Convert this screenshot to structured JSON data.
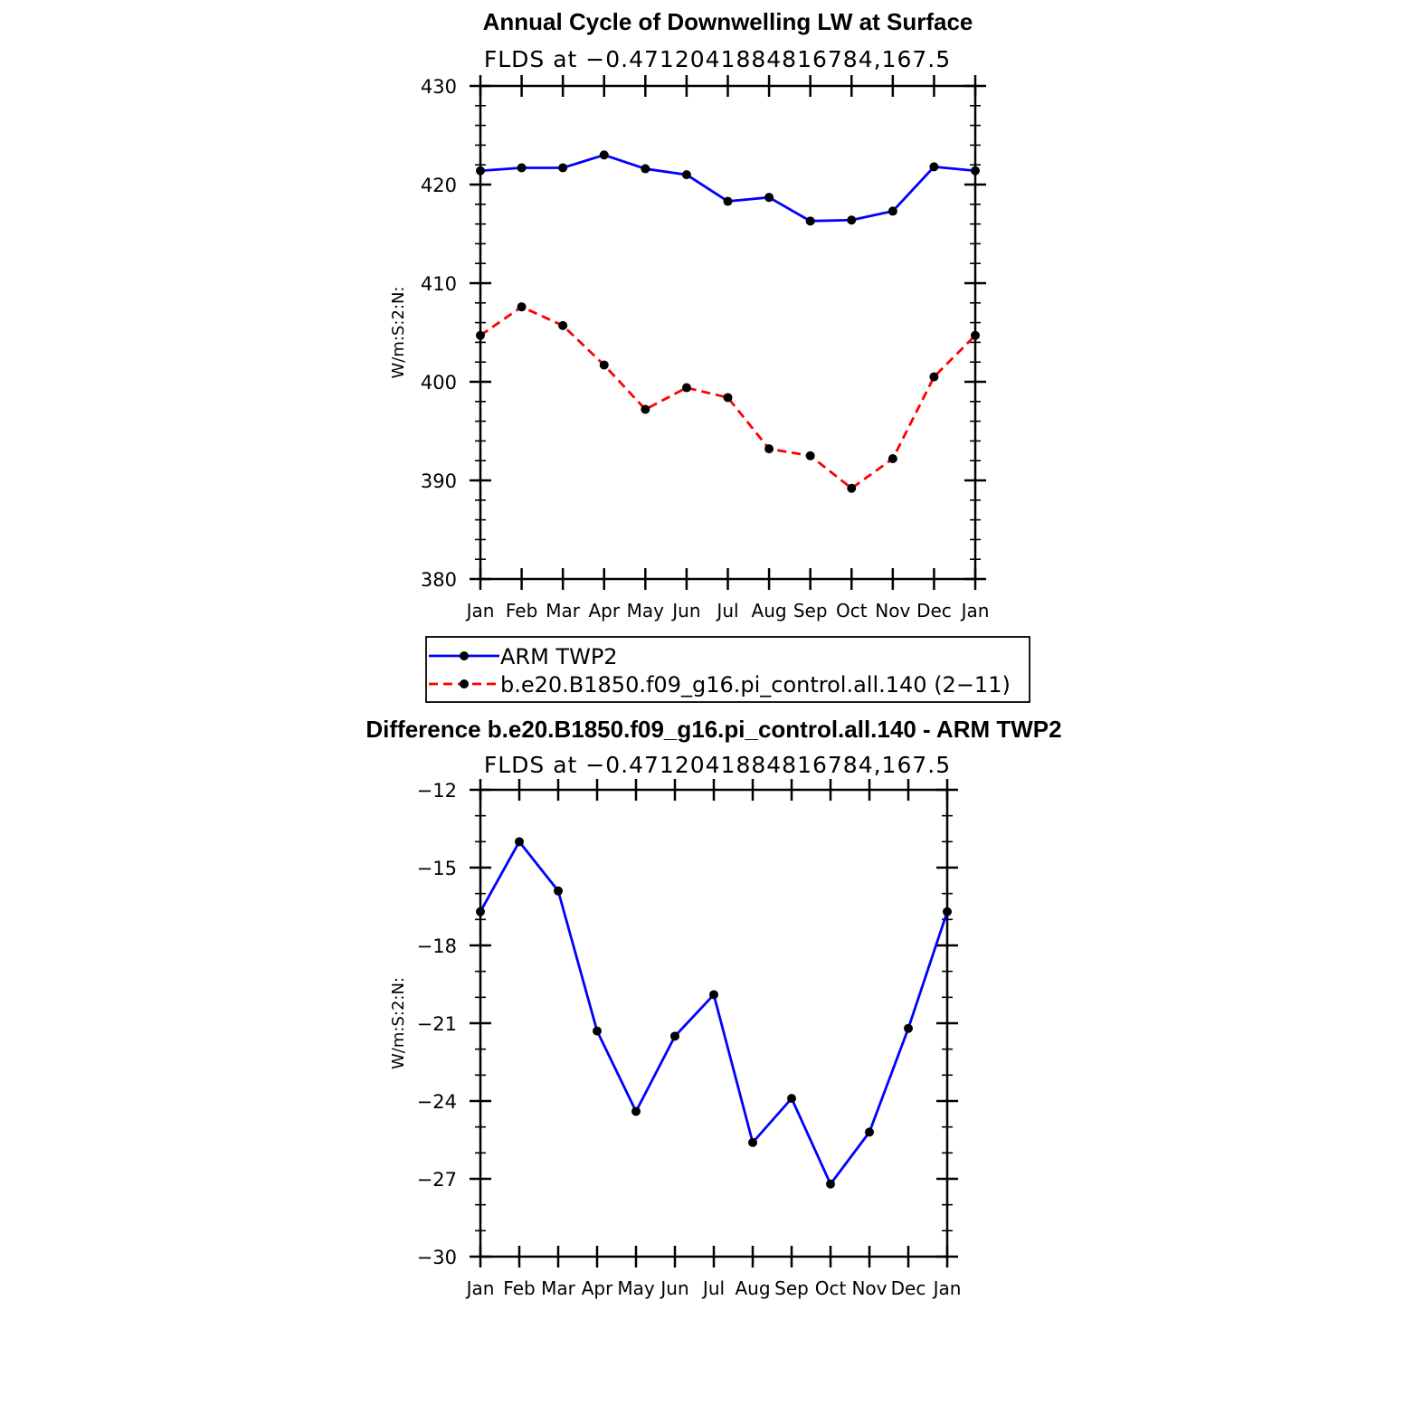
{
  "chart_data": [
    {
      "type": "line",
      "title": "Annual Cycle of Downwelling LW at Surface",
      "subtitle": "FLDS at −0.4712041884816784,167.5",
      "ylabel": "W/m:S:2:N:",
      "xlabel": "",
      "categories": [
        "Jan",
        "Feb",
        "Mar",
        "Apr",
        "May",
        "Jun",
        "Jul",
        "Aug",
        "Sep",
        "Oct",
        "Nov",
        "Dec",
        "Jan"
      ],
      "ylim": [
        380,
        430
      ],
      "yticks": [
        380,
        390,
        400,
        410,
        420,
        430
      ],
      "ytick_labels": [
        "380",
        "390",
        "400",
        "410",
        "420",
        "430"
      ],
      "series": [
        {
          "name": "ARM TWP2",
          "color": "#0000ff",
          "dash": "solid",
          "values": [
            421.4,
            421.7,
            421.7,
            423.0,
            421.6,
            421.0,
            418.3,
            418.7,
            416.3,
            416.4,
            417.3,
            421.8,
            421.4
          ]
        },
        {
          "name": "b.e20.B1850.f09_g16.pi_control.all.140 (2−11)",
          "color": "#ff0000",
          "dash": "dashed",
          "values": [
            404.7,
            407.6,
            405.7,
            401.7,
            397.2,
            399.4,
            398.4,
            393.2,
            392.5,
            389.2,
            392.2,
            400.5,
            404.7
          ]
        }
      ],
      "legend": {
        "position": "below",
        "entries": [
          "ARM TWP2",
          "b.e20.B1850.f09_g16.pi_control.all.140 (2−11)"
        ]
      }
    },
    {
      "type": "line",
      "title": "Difference b.e20.B1850.f09_g16.pi_control.all.140 - ARM TWP2",
      "subtitle": "FLDS at −0.4712041884816784,167.5",
      "ylabel": "W/m:S:2:N:",
      "xlabel": "",
      "categories": [
        "Jan",
        "Feb",
        "Mar",
        "Apr",
        "May",
        "Jun",
        "Jul",
        "Aug",
        "Sep",
        "Oct",
        "Nov",
        "Dec",
        "Jan"
      ],
      "ylim": [
        -30,
        -12
      ],
      "yticks": [
        -30,
        -27,
        -24,
        -21,
        -18,
        -15,
        -12
      ],
      "ytick_labels": [
        "−30",
        "−27",
        "−24",
        "−21",
        "−18",
        "−15",
        "−12"
      ],
      "series": [
        {
          "name": "Difference",
          "color": "#0000ff",
          "dash": "solid",
          "values": [
            -16.7,
            -14.0,
            -15.9,
            -21.3,
            -24.4,
            -21.5,
            -19.9,
            -25.6,
            -23.9,
            -27.2,
            -25.2,
            -21.2,
            -16.7
          ]
        }
      ]
    }
  ]
}
